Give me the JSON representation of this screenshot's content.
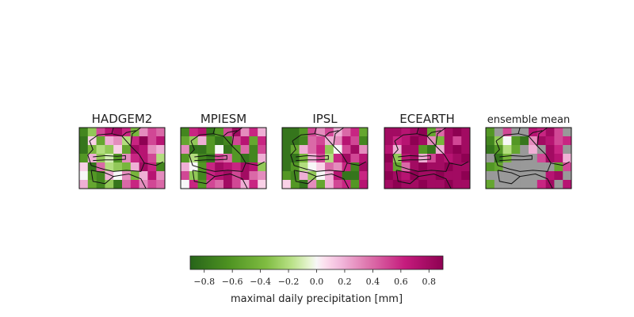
{
  "chart_data": {
    "type": "heatmap",
    "panels": [
      {
        "title": "HADGEM2",
        "grid": [
          [
            -0.7,
            -0.3,
            0.5,
            0.7,
            0.8,
            0.6,
            -0.4,
            0.3,
            0.5,
            0.4
          ],
          [
            -0.8,
            0.1,
            -0.5,
            0.2,
            0.3,
            -0.2,
            0.6,
            0.9,
            0.5,
            0.7
          ],
          [
            -0.8,
            -0.4,
            -0.2,
            -0.3,
            0.1,
            -0.5,
            0.8,
            0.7,
            0.3,
            0.2
          ],
          [
            -0.6,
            0.2,
            -0.3,
            -0.1,
            -0.6,
            0.3,
            0.6,
            0.7,
            0.5,
            -0.2
          ],
          [
            0.1,
            -0.8,
            0.4,
            -0.2,
            -0.3,
            -0.4,
            0.2,
            0.8,
            0.6,
            -0.7
          ],
          [
            0.0,
            -0.6,
            -0.7,
            0.2,
            0.0,
            0.3,
            -0.4,
            0.2,
            0.7,
            0.3
          ],
          [
            0.2,
            -0.5,
            -0.7,
            -0.3,
            -0.8,
            0.4,
            0.6,
            0.3,
            0.5,
            0.4
          ]
        ]
      },
      {
        "title": "MPIESM",
        "grid": [
          [
            -0.7,
            0.6,
            0.7,
            -0.8,
            -0.6,
            0.5,
            0.8,
            0.3,
            0.6,
            0.2
          ],
          [
            -0.5,
            -0.3,
            0.2,
            -0.6,
            -0.8,
            -0.7,
            0.5,
            0.7,
            -0.5,
            0.6
          ],
          [
            0.3,
            -0.8,
            -0.8,
            -0.6,
            0.0,
            -0.8,
            -0.6,
            0.4,
            -0.7,
            0.5
          ],
          [
            -0.6,
            -0.2,
            -0.7,
            -0.8,
            0.5,
            0.4,
            -0.6,
            -0.8,
            -0.7,
            0.2
          ],
          [
            0.2,
            0.0,
            -0.6,
            0.6,
            0.8,
            0.7,
            0.6,
            0.8,
            0.7,
            -0.3
          ],
          [
            0.5,
            -0.3,
            -0.7,
            0.6,
            0.7,
            0.8,
            0.5,
            0.8,
            0.4,
            0.3
          ],
          [
            0.0,
            0.6,
            -0.6,
            0.5,
            0.4,
            0.8,
            0.5,
            0.2,
            0.6,
            0.1
          ]
        ]
      },
      {
        "title": "IPSL",
        "grid": [
          [
            -0.8,
            -0.8,
            -0.6,
            0.5,
            0.3,
            0.5,
            0.2,
            0.4,
            0.6,
            -0.5
          ],
          [
            -0.8,
            -0.8,
            -0.7,
            0.4,
            0.5,
            0.2,
            0.3,
            0.7,
            0.5,
            -0.7
          ],
          [
            -0.8,
            -0.5,
            0.2,
            0.4,
            0.6,
            -0.3,
            0.0,
            0.5,
            0.8,
            0.3
          ],
          [
            -0.8,
            -0.8,
            -0.4,
            0.2,
            0.5,
            -0.2,
            0.6,
            0.8,
            0.5,
            0.7
          ],
          [
            -0.8,
            -0.6,
            -0.2,
            0.0,
            0.1,
            0.4,
            0.3,
            0.6,
            -0.7,
            0.8
          ],
          [
            -0.6,
            -0.7,
            0.2,
            -0.3,
            0.0,
            0.2,
            0.7,
            -0.8,
            -0.8,
            0.6
          ],
          [
            0.1,
            -0.6,
            -0.8,
            0.3,
            -0.5,
            0.2,
            0.5,
            0.6,
            -0.6,
            0.7
          ]
        ]
      },
      {
        "title": "ECEARTH",
        "grid": [
          [
            0.8,
            0.8,
            0.7,
            0.8,
            0.9,
            -0.5,
            0.4,
            0.8,
            0.9,
            0.8
          ],
          [
            0.8,
            0.6,
            0.7,
            0.9,
            0.8,
            0.3,
            -0.4,
            0.8,
            0.5,
            0.8
          ],
          [
            0.7,
            0.2,
            0.8,
            0.8,
            -0.6,
            -0.8,
            0.2,
            0.8,
            0.9,
            0.8
          ],
          [
            0.9,
            -0.3,
            0.7,
            0.8,
            0.2,
            0.5,
            0.8,
            0.7,
            0.8,
            0.9
          ],
          [
            0.8,
            -0.5,
            0.4,
            0.8,
            0.9,
            0.8,
            0.8,
            0.9,
            0.8,
            0.8
          ],
          [
            0.9,
            0.8,
            0.7,
            0.9,
            0.8,
            0.8,
            0.9,
            0.8,
            0.8,
            0.9
          ],
          [
            0.8,
            0.9,
            0.8,
            0.8,
            0.9,
            0.8,
            0.8,
            0.9,
            0.8,
            0.8
          ]
        ]
      },
      {
        "title": "ensemble mean",
        "grid": [
          [
            -0.6,
            null,
            0.5,
            null,
            null,
            0.7,
            0.6,
            0.8,
            0.5,
            null
          ],
          [
            -0.7,
            -0.3,
            0.0,
            -0.6,
            -0.8,
            0.3,
            0.8,
            0.7,
            0.5,
            0.6
          ],
          [
            -0.8,
            -0.6,
            -0.2,
            -0.5,
            null,
            0.2,
            null,
            0.8,
            0.6,
            null
          ],
          [
            null,
            -0.8,
            -0.4,
            null,
            null,
            null,
            0.5,
            0.8,
            0.7,
            0.2
          ],
          [
            -0.6,
            -0.5,
            null,
            null,
            null,
            null,
            null,
            null,
            -0.5,
            0.5
          ],
          [
            null,
            null,
            null,
            null,
            null,
            null,
            null,
            0.7,
            0.8,
            null
          ],
          [
            -0.5,
            null,
            null,
            null,
            null,
            null,
            0.6,
            0.8,
            null,
            0.7
          ]
        ]
      }
    ],
    "colorbar": {
      "colormap": "PiYG",
      "range": [
        -0.9,
        0.9
      ],
      "ticks": [
        -0.8,
        -0.6,
        -0.4,
        -0.2,
        0.0,
        0.2,
        0.4,
        0.6,
        0.8
      ],
      "tick_labels": [
        "−0.8",
        "−0.6",
        "−0.4",
        "−0.2",
        "0.0",
        "0.2",
        "0.4",
        "0.6",
        "0.8"
      ],
      "label": "maximal daily precipitation [mm]"
    },
    "missing_color": "#999999"
  }
}
